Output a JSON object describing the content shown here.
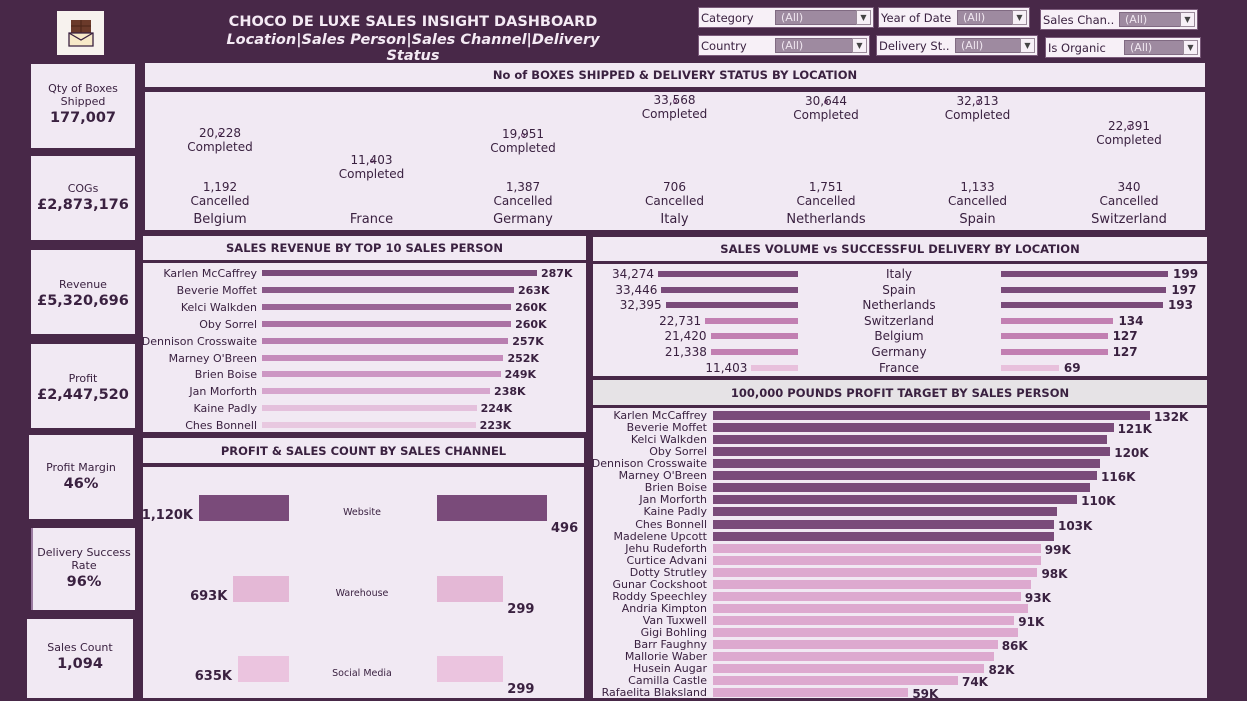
{
  "header": {
    "title": "CHOCO DE LUXE SALES INSIGHT DASHBOARD",
    "subtitle": "Location|Sales Person|Sales Channel|Delivery Status",
    "logo_icon": "chocolate-bar-icon"
  },
  "filters": [
    {
      "label": "Category",
      "value": "(All)"
    },
    {
      "label": "Year of Date",
      "value": "(All)"
    },
    {
      "label": "Sales Chan..",
      "value": "(All)"
    },
    {
      "label": "Country",
      "value": "(All)"
    },
    {
      "label": "Delivery St..",
      "value": "(All)"
    },
    {
      "label": "Is Organic",
      "value": "(All)"
    }
  ],
  "kpis": [
    {
      "label": "Qty of Boxes Shipped",
      "value": "177,007"
    },
    {
      "label": "COGs",
      "value": "£2,873,176"
    },
    {
      "label": "Revenue",
      "value": "£5,320,696"
    },
    {
      "label": "Profit",
      "value": "£2,447,520"
    },
    {
      "label": "Profit Margin",
      "value": "46%"
    },
    {
      "label": "Delivery Success Rate",
      "value": "96%"
    },
    {
      "label": "Sales Count",
      "value": "1,094"
    }
  ],
  "boxes_by_location": {
    "title": "No of BOXES SHIPPED & DELIVERY STATUS BY LOCATION",
    "completed_label": "Completed",
    "cancelled_label": "Cancelled",
    "locations": [
      {
        "name": "Belgium",
        "completed": "20,228",
        "cancelled": "1,192"
      },
      {
        "name": "France",
        "completed": "11,403",
        "cancelled": ""
      },
      {
        "name": "Germany",
        "completed": "19,951",
        "cancelled": "1,387"
      },
      {
        "name": "Italy",
        "completed": "33,568",
        "cancelled": "706"
      },
      {
        "name": "Netherlands",
        "completed": "30,644",
        "cancelled": "1,751"
      },
      {
        "name": "Spain",
        "completed": "32,313",
        "cancelled": "1,133"
      },
      {
        "name": "Switzerland",
        "completed": "22,391",
        "cancelled": "340"
      }
    ]
  },
  "chart_data": [
    {
      "type": "bar",
      "title": "SALES REVENUE BY TOP 10 SALES PERSON",
      "categories": [
        "Karlen McCaffrey",
        "Beverie Moffet",
        "Kelci Walkden",
        "Oby Sorrel",
        "Dennison Crosswaite",
        "Marney O'Breen",
        "Brien Boise",
        "Jan Morforth",
        "Kaine Padly",
        "Ches Bonnell"
      ],
      "values": [
        287,
        263,
        260,
        260,
        257,
        252,
        249,
        238,
        224,
        223
      ],
      "labels": [
        "287K",
        "263K",
        "260K",
        "260K",
        "257K",
        "252K",
        "249K",
        "238K",
        "224K",
        "223K"
      ]
    },
    {
      "type": "bar",
      "title": "SALES VOLUME vs SUCCESSFUL DELIVERY BY LOCATION",
      "categories": [
        "Italy",
        "Spain",
        "Netherlands",
        "Switzerland",
        "Belgium",
        "Germany",
        "France"
      ],
      "series": [
        {
          "values": [
            34274,
            33446,
            32395,
            22731,
            21420,
            21338,
            11403
          ],
          "labels": [
            "34,274",
            "33,446",
            "32,395",
            "22,731",
            "21,420",
            "21,338",
            "11,403"
          ]
        },
        {
          "values": [
            199,
            197,
            193,
            134,
            127,
            127,
            69
          ],
          "labels": [
            "199",
            "197",
            "193",
            "134",
            "127",
            "127",
            "69"
          ]
        }
      ]
    },
    {
      "type": "bar",
      "title": "PROFIT & SALES COUNT BY SALES CHANNEL",
      "categories": [
        "Website",
        "Warehouse",
        "Social Media"
      ],
      "series": [
        {
          "values": [
            1120,
            693,
            635
          ],
          "labels": [
            "1,120K",
            "693K",
            "635K"
          ]
        },
        {
          "values": [
            496,
            299,
            299
          ],
          "labels": [
            "496",
            "299",
            "299"
          ]
        }
      ]
    },
    {
      "type": "bar",
      "title": "100,000 POUNDS PROFIT TARGET BY SALES PERSON",
      "categories": [
        "Karlen McCaffrey",
        "Beverie Moffet",
        "Kelci Walkden",
        "Oby Sorrel",
        "Dennison Crosswaite",
        "Marney O'Breen",
        "Brien Boise",
        "Jan Morforth",
        "Kaine Padly",
        "Ches Bonnell",
        "Madelene Upcott",
        "Jehu Rudeforth",
        "Curtice Advani",
        "Dotty Strutley",
        "Gunar Cockshoot",
        "Roddy Speechley",
        "Andria Kimpton",
        "Van Tuxwell",
        "Gigi Bohling",
        "Barr Faughny",
        "Mallorie Waber",
        "Husein Augar",
        "Camilla Castle",
        "Rafaelita Blaksland"
      ],
      "values": [
        132,
        121,
        119,
        120,
        117,
        116,
        114,
        110,
        104,
        103,
        103,
        99,
        99,
        98,
        96,
        93,
        95,
        91,
        92,
        86,
        85,
        82,
        74,
        59
      ],
      "labels": [
        "132K",
        "121K",
        "",
        "120K",
        "",
        "116K",
        "",
        "110K",
        "",
        "103K",
        "",
        "99K",
        "",
        "98K",
        "",
        "93K",
        "",
        "91K",
        "",
        "86K",
        "",
        "82K",
        "74K",
        "59K"
      ]
    }
  ],
  "colors": {
    "dark": "#7a4b7a",
    "mid": "#c27fb2",
    "light": "#e8c0dc",
    "bg": "#482848",
    "panel": "#f1e9f3"
  }
}
